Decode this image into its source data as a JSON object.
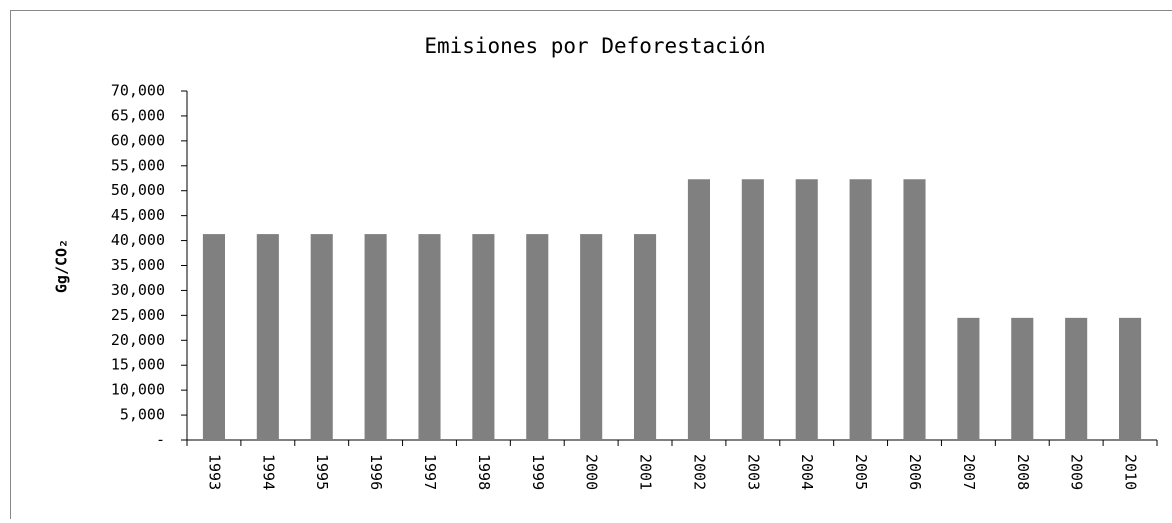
{
  "chart_data": {
    "type": "bar",
    "title": "Emisiones por Deforestación",
    "y_label": "Gg/CO₂",
    "categories": [
      "1993",
      "1994",
      "1995",
      "1996",
      "1997",
      "1998",
      "1999",
      "2000",
      "2001",
      "2002",
      "2003",
      "2004",
      "2005",
      "2006",
      "2007",
      "2008",
      "2009",
      "2010"
    ],
    "values": [
      41300,
      41300,
      41300,
      41300,
      41300,
      41300,
      41300,
      41300,
      41300,
      52300,
      52300,
      52300,
      52300,
      52300,
      24500,
      24500,
      24500,
      24500
    ],
    "color": "#808080",
    "ylim": [
      0,
      70000
    ],
    "yticks": [
      {
        "value": 0,
        "label": "-"
      },
      {
        "value": 5000,
        "label": "5,000"
      },
      {
        "value": 10000,
        "label": "10,000"
      },
      {
        "value": 15000,
        "label": "15,000"
      },
      {
        "value": 20000,
        "label": "20,000"
      },
      {
        "value": 25000,
        "label": "25,000"
      },
      {
        "value": 30000,
        "label": "30,000"
      },
      {
        "value": 35000,
        "label": "35,000"
      },
      {
        "value": 40000,
        "label": "40,000"
      },
      {
        "value": 45000,
        "label": "45,000"
      },
      {
        "value": 50000,
        "label": "50,000"
      },
      {
        "value": 55000,
        "label": "55,000"
      },
      {
        "value": 60000,
        "label": "60,000"
      },
      {
        "value": 65000,
        "label": "65,000"
      },
      {
        "value": 70000,
        "label": "70,000"
      }
    ],
    "grid": false
  }
}
